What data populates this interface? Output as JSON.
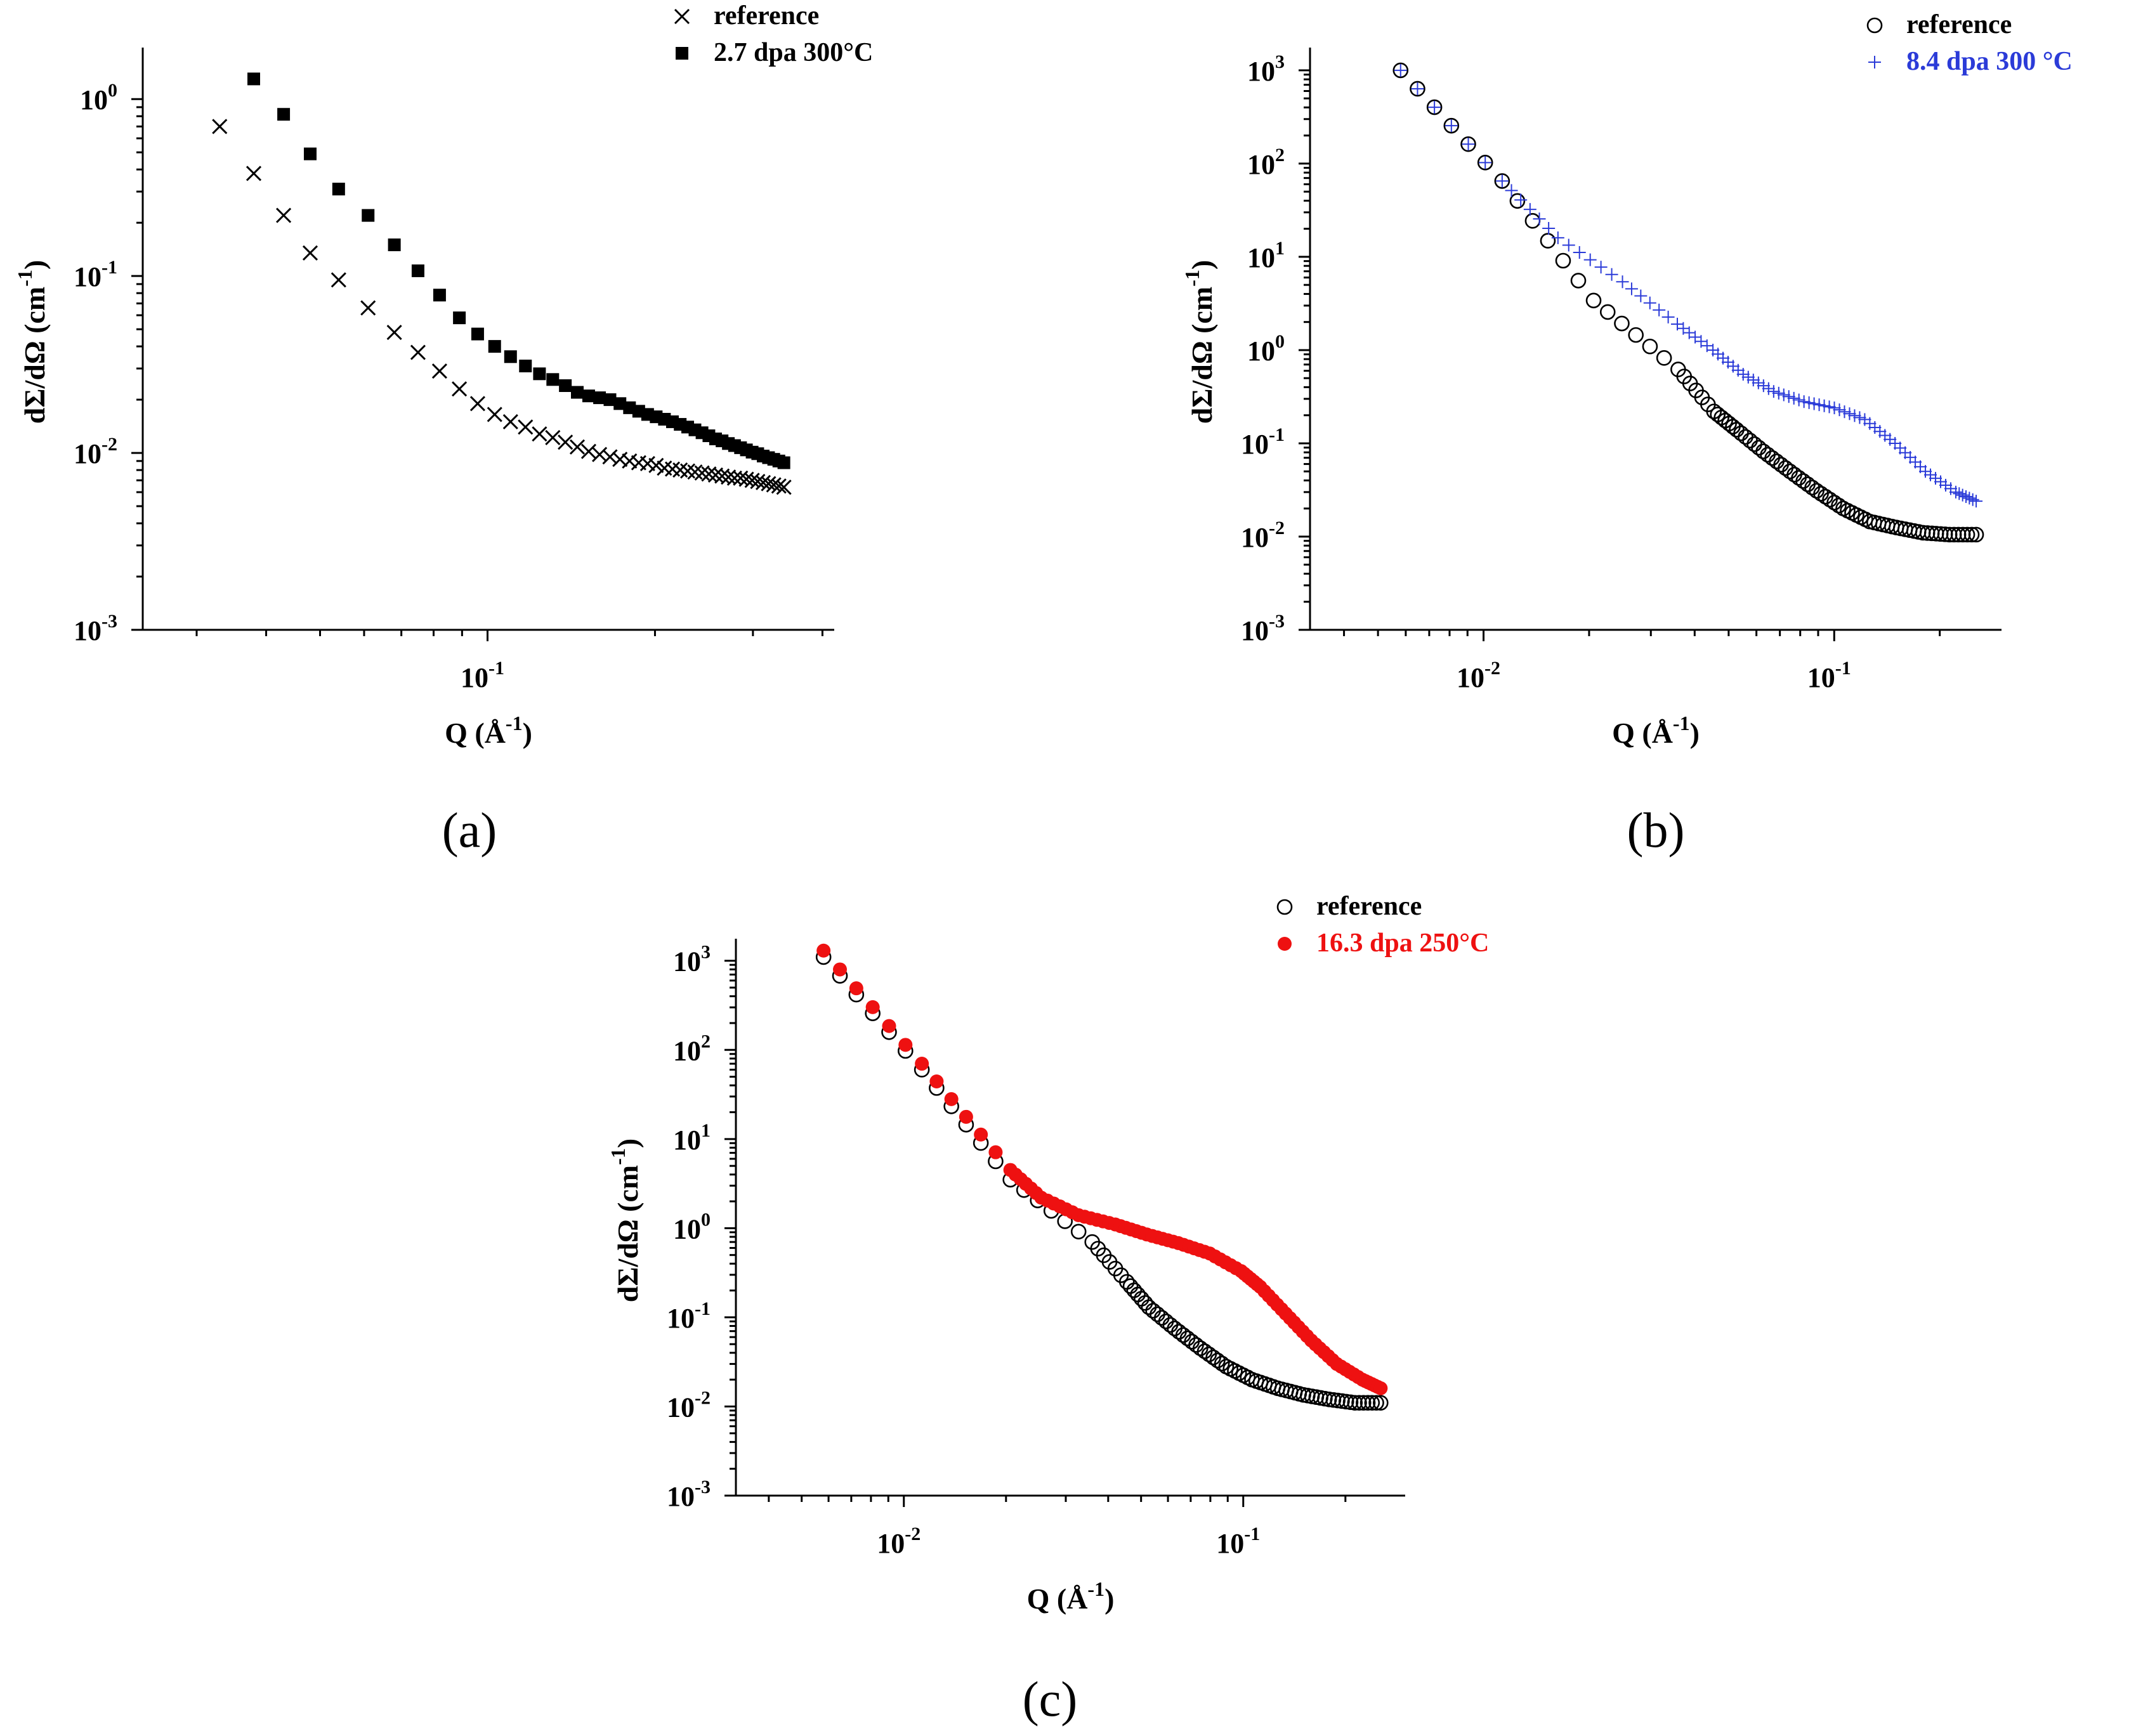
{
  "chart_data": [
    {
      "type": "scatter",
      "panel_label": "(a)",
      "xlabel": "Q (Å",
      "xlabel_exp": "-1",
      "xlabel_tail": ")",
      "ylabel": "dΣ/dΩ (cm",
      "ylabel_exp": "-1",
      "ylabel_tail": ")",
      "xscale": "log",
      "yscale": "log",
      "xlim": [
        0.024,
        0.42
      ],
      "ylim": [
        0.001,
        1.8
      ],
      "xticks": [
        {
          "value": 0.1,
          "base": "10",
          "exp": "-1"
        }
      ],
      "yticks": [
        {
          "value": 1,
          "base": "10",
          "exp": "0"
        },
        {
          "value": 0.1,
          "base": "10",
          "exp": "-1"
        },
        {
          "value": 0.01,
          "base": "10",
          "exp": "-2"
        },
        {
          "value": 0.001,
          "base": "10",
          "exp": "-3"
        }
      ],
      "legend_position": "top-right outside",
      "series": [
        {
          "name": "reference",
          "marker": "x",
          "color": "#000000",
          "x": [
            0.033,
            0.038,
            0.043,
            0.048,
            0.054,
            0.061,
            0.068,
            0.075,
            0.082,
            0.089,
            0.096,
            0.103,
            0.11,
            0.117,
            0.124,
            0.131,
            0.138,
            0.145,
            0.152,
            0.159,
            0.166,
            0.173,
            0.18,
            0.187,
            0.194,
            0.201,
            0.208,
            0.215,
            0.222,
            0.229,
            0.236,
            0.243,
            0.25,
            0.257,
            0.264,
            0.271,
            0.278,
            0.285,
            0.292,
            0.299,
            0.306,
            0.313,
            0.32,
            0.327,
            0.334,
            0.341
          ],
          "y": [
            0.7,
            0.38,
            0.22,
            0.135,
            0.095,
            0.066,
            0.048,
            0.037,
            0.029,
            0.023,
            0.019,
            0.0165,
            0.015,
            0.014,
            0.0128,
            0.0122,
            0.0115,
            0.0108,
            0.0102,
            0.0098,
            0.0095,
            0.0092,
            0.009,
            0.0088,
            0.0087,
            0.0085,
            0.0082,
            0.0081,
            0.008,
            0.0079,
            0.0078,
            0.0077,
            0.0076,
            0.0075,
            0.0074,
            0.0073,
            0.0072,
            0.0072,
            0.0071,
            0.007,
            0.0069,
            0.0068,
            0.0067,
            0.0066,
            0.0065,
            0.0064
          ]
        },
        {
          "name": "2.7 dpa 300°C",
          "marker": "square",
          "color": "#000000",
          "x": [
            0.038,
            0.043,
            0.048,
            0.054,
            0.061,
            0.068,
            0.075,
            0.082,
            0.089,
            0.096,
            0.103,
            0.11,
            0.117,
            0.124,
            0.131,
            0.138,
            0.145,
            0.152,
            0.159,
            0.166,
            0.173,
            0.18,
            0.187,
            0.194,
            0.201,
            0.208,
            0.215,
            0.222,
            0.229,
            0.236,
            0.243,
            0.25,
            0.257,
            0.264,
            0.271,
            0.278,
            0.285,
            0.292,
            0.299,
            0.306,
            0.313,
            0.32,
            0.327,
            0.334,
            0.341
          ],
          "y": [
            1.3,
            0.82,
            0.49,
            0.31,
            0.22,
            0.15,
            0.107,
            0.078,
            0.058,
            0.047,
            0.04,
            0.035,
            0.031,
            0.028,
            0.026,
            0.024,
            0.022,
            0.021,
            0.0205,
            0.02,
            0.019,
            0.018,
            0.0172,
            0.0165,
            0.016,
            0.0155,
            0.015,
            0.0145,
            0.014,
            0.0135,
            0.013,
            0.0125,
            0.012,
            0.0117,
            0.0113,
            0.011,
            0.0107,
            0.0104,
            0.0101,
            0.0099,
            0.0096,
            0.0094,
            0.0092,
            0.009,
            0.0088
          ]
        }
      ]
    },
    {
      "type": "scatter",
      "panel_label": "(b)",
      "xlabel": "Q (Å",
      "xlabel_exp": "-1",
      "xlabel_tail": ")",
      "ylabel": "dΣ/dΩ (cm",
      "ylabel_exp": "-1",
      "ylabel_tail": ")",
      "xscale": "log",
      "yscale": "log",
      "xlim": [
        0.0032,
        0.3
      ],
      "ylim": [
        0.001,
        1500
      ],
      "xticks": [
        {
          "value": 0.01,
          "base": "10",
          "exp": "-2"
        },
        {
          "value": 0.1,
          "base": "10",
          "exp": "-1"
        }
      ],
      "yticks": [
        {
          "value": 1000,
          "base": "10",
          "exp": "3"
        },
        {
          "value": 100,
          "base": "10",
          "exp": "2"
        },
        {
          "value": 10,
          "base": "10",
          "exp": "1"
        },
        {
          "value": 1,
          "base": "10",
          "exp": "0"
        },
        {
          "value": 0.1,
          "base": "10",
          "exp": "-1"
        },
        {
          "value": 0.01,
          "base": "10",
          "exp": "-2"
        },
        {
          "value": 0.001,
          "base": "10",
          "exp": "-3"
        }
      ],
      "legend_position": "top-right outside",
      "series": [
        {
          "name": "reference",
          "marker": "circle-open",
          "color": "#000000",
          "x": [
            0.0058,
            0.0113,
            0.0206,
            0.0359,
            0.0454,
            0.0527,
            0.0628,
            0.0748,
            0.0891,
            0.1061,
            0.1263,
            0.1504,
            0.1791,
            0.2133,
            0.254
          ],
          "y": [
            1000,
            65,
            3.4,
            0.62,
            0.22,
            0.14,
            0.082,
            0.05,
            0.031,
            0.02,
            0.0145,
            0.0125,
            0.011,
            0.0105,
            0.0105
          ]
        },
        {
          "name": "8.4 dpa 300 °C",
          "marker": "plus",
          "color": "#2b3bd8",
          "x": [
            0.0058,
            0.0113,
            0.0163,
            0.0249,
            0.0357,
            0.0451,
            0.055,
            0.0672,
            0.082,
            0.1001,
            0.1222,
            0.1491,
            0.182,
            0.2222,
            0.254
          ],
          "y": [
            1000,
            65,
            16,
            5.4,
            1.9,
            1.0,
            0.55,
            0.36,
            0.28,
            0.24,
            0.18,
            0.1,
            0.05,
            0.03,
            0.024
          ]
        }
      ]
    },
    {
      "type": "scatter",
      "panel_label": "(c)",
      "xlabel": "Q (Å",
      "xlabel_exp": "-1",
      "xlabel_tail": ")",
      "ylabel": "dΣ/dΩ (cm",
      "ylabel_exp": "-1",
      "ylabel_tail": ")",
      "xscale": "log",
      "yscale": "log",
      "xlim": [
        0.0032,
        0.3
      ],
      "ylim": [
        0.001,
        1500
      ],
      "xticks": [
        {
          "value": 0.01,
          "base": "10",
          "exp": "-2"
        },
        {
          "value": 0.1,
          "base": "10",
          "exp": "-1"
        }
      ],
      "yticks": [
        {
          "value": 1000,
          "base": "10",
          "exp": "3"
        },
        {
          "value": 100,
          "base": "10",
          "exp": "2"
        },
        {
          "value": 10,
          "base": "10",
          "exp": "1"
        },
        {
          "value": 1,
          "base": "10",
          "exp": "0"
        },
        {
          "value": 0.1,
          "base": "10",
          "exp": "-1"
        },
        {
          "value": 0.01,
          "base": "10",
          "exp": "-2"
        },
        {
          "value": 0.001,
          "base": "10",
          "exp": "-3"
        }
      ],
      "legend_position": "top-right outside",
      "series": [
        {
          "name": "reference",
          "marker": "circle-open",
          "color": "#000000",
          "x": [
            0.0058,
            0.0113,
            0.0206,
            0.0359,
            0.0454,
            0.0527,
            0.0628,
            0.0748,
            0.0891,
            0.1061,
            0.1263,
            0.1504,
            0.1791,
            0.2133,
            0.254
          ],
          "y": [
            1100,
            60,
            3.5,
            0.7,
            0.25,
            0.13,
            0.075,
            0.045,
            0.028,
            0.02,
            0.016,
            0.0135,
            0.012,
            0.011,
            0.011
          ]
        },
        {
          "name": "16.3 dpa 250°C",
          "marker": "circle-filled",
          "color": "#ee1111",
          "x": [
            0.0058,
            0.0113,
            0.0206,
            0.0254,
            0.0327,
            0.042,
            0.052,
            0.0644,
            0.0797,
            0.0986,
            0.1122,
            0.1334,
            0.1586,
            0.1886,
            0.2244,
            0.254
          ],
          "y": [
            1300,
            70,
            4.5,
            2.2,
            1.4,
            1.1,
            0.85,
            0.68,
            0.52,
            0.33,
            0.22,
            0.11,
            0.055,
            0.03,
            0.02,
            0.016
          ]
        }
      ]
    }
  ]
}
